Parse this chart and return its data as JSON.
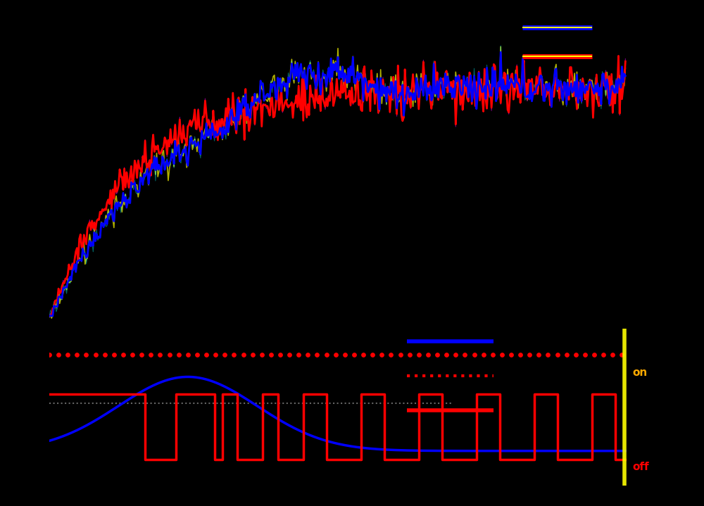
{
  "background_color": "#000000",
  "fig_width": 10.0,
  "fig_height": 7.19,
  "top_subplot": {
    "ylim": [
      -0.5,
      11.5
    ],
    "xlim": [
      0,
      500
    ],
    "yticks": [],
    "tick_color": "white",
    "spine_color": "white"
  },
  "bottom_subplot": {
    "ylim": [
      -0.4,
      1.4
    ],
    "xlim": [
      0,
      500
    ],
    "yticks": [],
    "on_label": "on",
    "off_label": "off",
    "on_color": "#ffaa00",
    "off_color": "#ff0000"
  },
  "legend_top": {
    "line1_label": "",
    "line2_label": "",
    "line1_color": "#0000ff",
    "line2_color": "#ff0000"
  },
  "legend_bottom": {
    "line1_label": "",
    "line2_label": "",
    "line3_label": "",
    "line1_color": "#0000ff",
    "line2_color": "#cc0000",
    "line3_color": "#ff0000"
  },
  "colors": {
    "blue": "#0000ff",
    "red": "#ff0000",
    "yellow": "#ffff00",
    "cyan": "#00ffff",
    "magenta": "#ff00ff",
    "white": "#ffffff",
    "orange": "#ff8800"
  }
}
